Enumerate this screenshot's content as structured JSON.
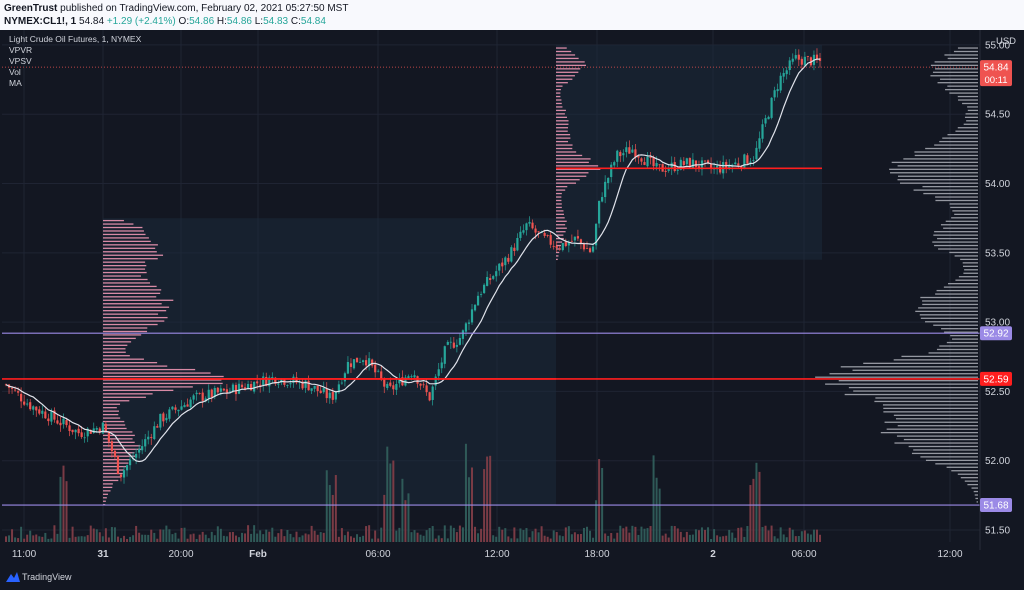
{
  "header": {
    "line1_user": "GreenTrust",
    "line1_rest": " published on TradingView.com, February 02, 2021 05:27:50 MST",
    "symbol": "NYMEX:CL1!, 1",
    "last": "54.84",
    "change": "+1.29 (+2.41%)",
    "o_label": "O:",
    "o": "54.86",
    "h_label": "H:",
    "h": "54.86",
    "l_label": "L:",
    "l": "54.83",
    "c_label": "C:",
    "c": "54.84"
  },
  "legend": {
    "title": "Light Crude Oil Futures, 1, NYMEX",
    "indicators": [
      "VPVR",
      "VPSV",
      "Vol",
      "MA"
    ]
  },
  "currency": "USD",
  "footer": {
    "brand": "TradingView",
    "logo_icon": "tradingview-logo-icon"
  },
  "colors": {
    "background": "#131722",
    "grid": "#1f2433",
    "candle_up": "#26a69a",
    "candle_down": "#ef5350",
    "poc_line": "#ff1e1e",
    "level_line": "#9b8ae6",
    "price_label": "#ef5350",
    "level_label": "#9b8ae6",
    "profile_pink": "#d88aa5",
    "profile_gray": "#9598a1",
    "ma": "#e0e3eb"
  },
  "chart_data": {
    "type": "candlestick",
    "title": "Light Crude Oil Futures, 1, NYMEX",
    "x_ticks": [
      "11:00",
      "31",
      "20:00",
      "Feb",
      "06:00",
      "12:00",
      "18:00",
      "2",
      "06:00",
      "12:00"
    ],
    "y_ticks": [
      "55.00",
      "54.50",
      "54.00",
      "53.50",
      "53.00",
      "52.50",
      "52.00",
      "51.50"
    ],
    "y_range": [
      51.5,
      55.05
    ],
    "last_price": "54.84",
    "countdown": "00:11",
    "horizontal_levels": [
      {
        "value": 52.92,
        "label": "52.92",
        "kind": "level"
      },
      {
        "value": 52.59,
        "label": "52.59",
        "kind": "poc"
      },
      {
        "value": 51.68,
        "label": "51.68",
        "kind": "level"
      }
    ],
    "session_poc": [
      {
        "value": 52.59,
        "from": "31",
        "to": "Feb 15:00"
      },
      {
        "value": 54.11,
        "from": "Feb 15:00",
        "to": "2 05:30"
      }
    ],
    "price_path": [
      [
        0,
        52.55
      ],
      [
        0.03,
        52.4
      ],
      [
        0.06,
        52.3
      ],
      [
        0.09,
        52.2
      ],
      [
        0.12,
        52.25
      ],
      [
        0.14,
        51.9
      ],
      [
        0.16,
        52.05
      ],
      [
        0.19,
        52.3
      ],
      [
        0.23,
        52.45
      ],
      [
        0.27,
        52.5
      ],
      [
        0.3,
        52.55
      ],
      [
        0.33,
        52.6
      ],
      [
        0.37,
        52.55
      ],
      [
        0.4,
        52.45
      ],
      [
        0.42,
        52.7
      ],
      [
        0.44,
        52.75
      ],
      [
        0.47,
        52.5
      ],
      [
        0.5,
        52.65
      ],
      [
        0.52,
        52.45
      ],
      [
        0.54,
        52.8
      ],
      [
        0.56,
        52.9
      ],
      [
        0.58,
        53.2
      ],
      [
        0.6,
        53.35
      ],
      [
        0.62,
        53.5
      ],
      [
        0.64,
        53.7
      ],
      [
        0.66,
        53.6
      ],
      [
        0.68,
        53.55
      ],
      [
        0.7,
        53.6
      ],
      [
        0.72,
        53.5
      ],
      [
        0.73,
        53.9
      ],
      [
        0.75,
        54.2
      ],
      [
        0.77,
        54.25
      ],
      [
        0.8,
        54.1
      ],
      [
        0.84,
        54.15
      ],
      [
        0.87,
        54.1
      ],
      [
        0.9,
        54.15
      ],
      [
        0.92,
        54.2
      ],
      [
        0.93,
        54.4
      ],
      [
        0.95,
        54.75
      ],
      [
        0.97,
        54.9
      ],
      [
        1,
        54.88
      ]
    ],
    "volume_spikes": [
      0.07,
      0.4,
      0.47,
      0.49,
      0.57,
      0.59,
      0.73,
      0.8,
      0.92
    ],
    "grid": true,
    "legend": "top-left"
  }
}
